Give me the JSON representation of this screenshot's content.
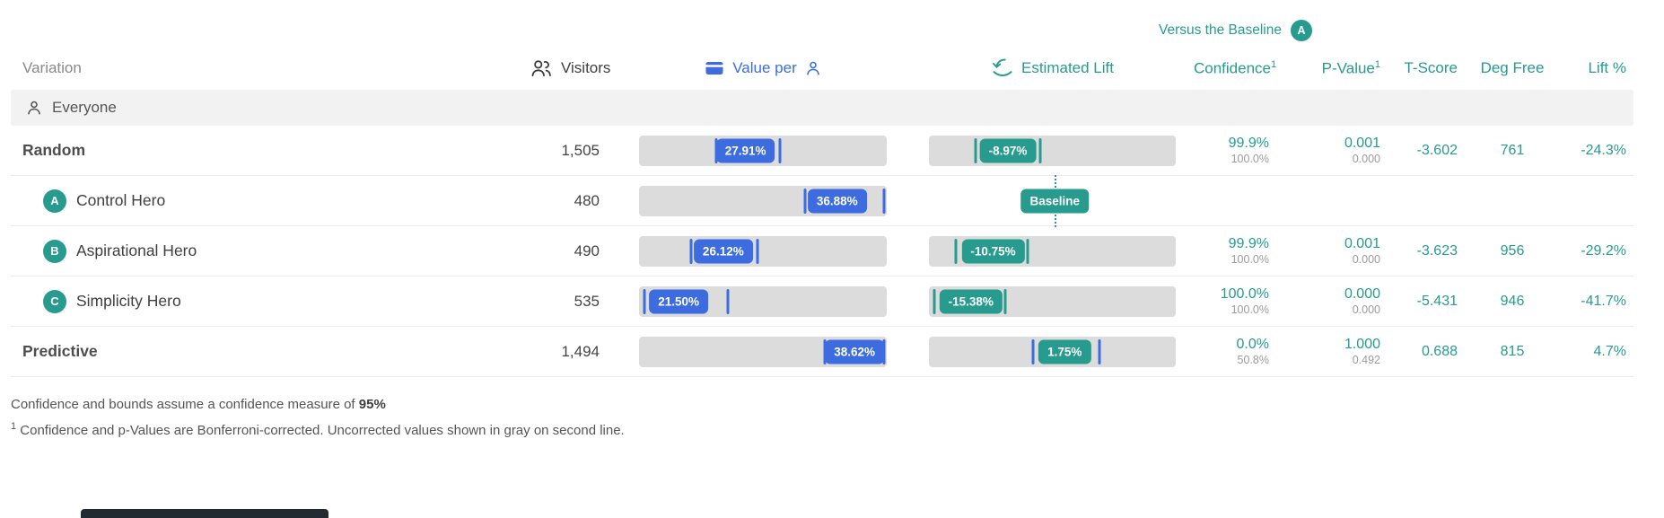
{
  "colors": {
    "teal": "#279b8e",
    "blue": "#3c6ce0",
    "bar_gray": "#dcdcdc",
    "segment_bg": "#f2f2f2",
    "secondary_text": "#9b9b9b",
    "dark_overlay": "#232a32"
  },
  "header": {
    "versus_label": "Versus the Baseline",
    "versus_badge": "A"
  },
  "columns": {
    "variation": "Variation",
    "visitors": "Visitors",
    "value_per": "Value per",
    "estimated_lift": "Estimated Lift",
    "confidence": "Confidence",
    "p_value": "P-Value",
    "t_score": "T-Score",
    "deg_free": "Deg Free",
    "lift_pct": "Lift %",
    "footnote_marker": "1"
  },
  "segment": {
    "label": "Everyone"
  },
  "rows": [
    {
      "label": "Random",
      "visitors": "1,505",
      "value": {
        "label": "27.91%",
        "pos": 43,
        "lo": 31,
        "hi": 57,
        "color": "blue",
        "whisker": "blue"
      },
      "lift": {
        "label": "-8.97%",
        "pos": 32,
        "lo": 19,
        "hi": 45,
        "color": "teal",
        "whisker": "teal"
      },
      "confidence": "99.9%",
      "confidence_uncorrected": "100.0%",
      "p_value": "0.001",
      "p_value_uncorrected": "0.000",
      "t_score": "-3.602",
      "deg_free": "761",
      "lift_pct": "-24.3%"
    },
    {
      "letter": "A",
      "label": "Control Hero",
      "visitors": "480",
      "value": {
        "label": "36.88%",
        "pos": 80,
        "lo": 67,
        "hi": 99,
        "color": "blue",
        "whisker": "blue"
      },
      "lift": {
        "label": "Baseline",
        "pos": 51,
        "color": "teal",
        "baseline": true
      }
    },
    {
      "letter": "B",
      "label": "Aspirational Hero",
      "visitors": "490",
      "value": {
        "label": "26.12%",
        "pos": 34,
        "lo": 21,
        "hi": 48,
        "color": "blue",
        "whisker": "blue"
      },
      "lift": {
        "label": "-10.75%",
        "pos": 26,
        "lo": 11,
        "hi": 40,
        "color": "teal",
        "whisker": "teal"
      },
      "confidence": "99.9%",
      "confidence_uncorrected": "100.0%",
      "p_value": "0.001",
      "p_value_uncorrected": "0.000",
      "t_score": "-3.623",
      "deg_free": "956",
      "lift_pct": "-29.2%"
    },
    {
      "letter": "C",
      "label": "Simplicity Hero",
      "visitors": "535",
      "value": {
        "label": "21.50%",
        "pos": 16,
        "lo": 2,
        "hi": 36,
        "color": "blue",
        "whisker": "blue"
      },
      "lift": {
        "label": "-15.38%",
        "pos": 17,
        "lo": 2,
        "hi": 31,
        "color": "teal",
        "whisker": "teal"
      },
      "confidence": "100.0%",
      "confidence_uncorrected": "100.0%",
      "p_value": "0.000",
      "p_value_uncorrected": "0.000",
      "t_score": "-5.431",
      "deg_free": "946",
      "lift_pct": "-41.7%"
    },
    {
      "label": "Predictive",
      "visitors": "1,494",
      "value": {
        "label": "38.62%",
        "pos": 87,
        "lo": 75,
        "hi": 99,
        "color": "blue",
        "whisker": "blue"
      },
      "lift": {
        "label": "1.75%",
        "pos": 55,
        "lo": 42,
        "hi": 69,
        "color": "teal",
        "whisker": "blue"
      },
      "confidence": "0.0%",
      "confidence_uncorrected": "50.8%",
      "p_value": "1.000",
      "p_value_uncorrected": "0.492",
      "t_score": "0.688",
      "deg_free": "815",
      "lift_pct": "4.7%"
    }
  ],
  "footnotes": {
    "confidence_note": "Confidence and bounds assume a confidence measure of ",
    "confidence_value": "95%",
    "marker": "1",
    "bonferroni_note": " Confidence and p-Values are Bonferroni-corrected. Uncorrected values shown in gray on second line."
  }
}
